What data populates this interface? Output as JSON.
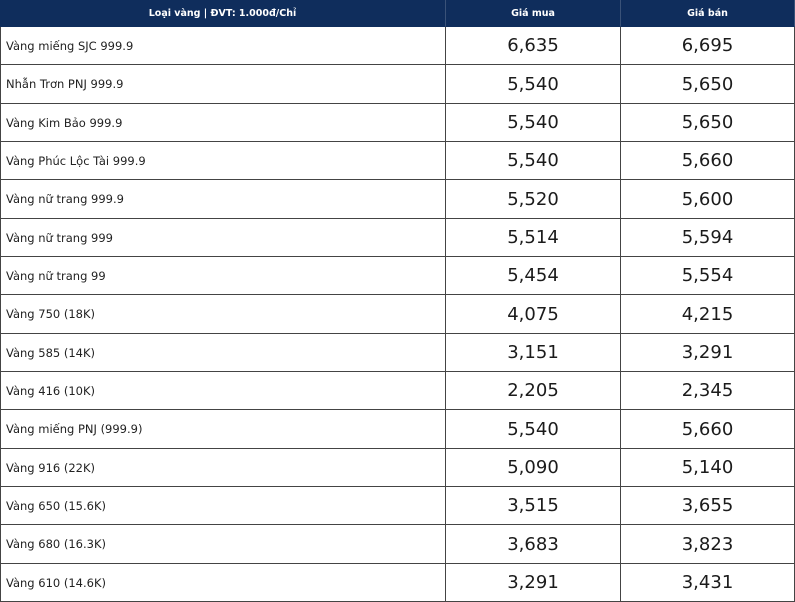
{
  "table": {
    "header": [
      "Loại vàng | ĐVT: 1.000đ/Chỉ",
      "Giá mua",
      "Giá bán"
    ],
    "rows": [
      [
        "Vàng miếng SJC 999.9",
        "6,635",
        "6,695"
      ],
      [
        "Nhẫn Trơn PNJ 999.9",
        "5,540",
        "5,650"
      ],
      [
        "Vàng Kim Bảo 999.9",
        "5,540",
        "5,650"
      ],
      [
        "Vàng Phúc Lộc Tài 999.9",
        "5,540",
        "5,660"
      ],
      [
        "Vàng nữ trang 999.9",
        "5,520",
        "5,600"
      ],
      [
        "Vàng nữ trang 999",
        "5,514",
        "5,594"
      ],
      [
        "Vàng nữ trang 99",
        "5,454",
        "5,554"
      ],
      [
        "Vàng 750 (18K)",
        "4,075",
        "4,215"
      ],
      [
        "Vàng 585 (14K)",
        "3,151",
        "3,291"
      ],
      [
        "Vàng 416 (10K)",
        "2,205",
        "2,345"
      ],
      [
        "Vàng miếng PNJ (999.9)",
        "5,540",
        "5,660"
      ],
      [
        "Vàng 916 (22K)",
        "5,090",
        "5,140"
      ],
      [
        "Vàng 650 (15.6K)",
        "3,515",
        "3,655"
      ],
      [
        "Vàng 680 (16.3K)",
        "3,683",
        "3,823"
      ],
      [
        "Vàng 610 (14.6K)",
        "3,291",
        "3,431"
      ]
    ]
  }
}
